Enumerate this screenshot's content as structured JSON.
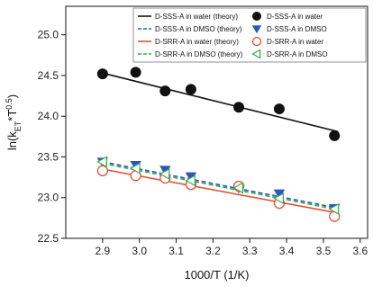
{
  "chart_data": {
    "type": "scatter",
    "xlabel": "1000/T (1/K)",
    "ylabel": "ln(k_ET*T^0.5)",
    "xlim": [
      2.8,
      3.62
    ],
    "ylim": [
      22.5,
      25.35
    ],
    "xticks": [
      "2.9",
      "3.0",
      "3.1",
      "3.2",
      "3.3",
      "3.4",
      "3.5",
      "3.6"
    ],
    "yticks": [
      "22.5",
      "23.0",
      "23.5",
      "24.0",
      "24.5",
      "25.0"
    ],
    "grid": false,
    "legend_position": "top-right",
    "series": [
      {
        "name": "D-SSS-A in water",
        "kind": "points",
        "marker": "filled-circle",
        "color": "#111111",
        "x": [
          2.9,
          2.99,
          3.07,
          3.14,
          3.27,
          3.38,
          3.53
        ],
        "y": [
          24.52,
          24.54,
          24.31,
          24.33,
          24.11,
          24.09,
          23.76
        ]
      },
      {
        "name": "D-SSS-A in water (theory)",
        "kind": "line",
        "style": "solid",
        "color": "#111111",
        "x": [
          2.9,
          3.54
        ],
        "y": [
          24.53,
          23.81
        ]
      },
      {
        "name": "D-SSS-A in DMSO",
        "kind": "points",
        "marker": "filled-triangle-down",
        "color": "#2a58b8",
        "x": [
          2.9,
          2.99,
          3.07,
          3.14,
          3.27,
          3.38,
          3.53
        ],
        "y": [
          23.44,
          23.4,
          23.34,
          23.26,
          23.12,
          23.05,
          22.87
        ]
      },
      {
        "name": "D-SSS-A in DMSO (theory)",
        "kind": "line",
        "style": "dashed",
        "color": "#2a58b8",
        "x": [
          2.9,
          3.54
        ],
        "y": [
          23.44,
          22.87
        ]
      },
      {
        "name": "D-SRR-A in water",
        "kind": "points",
        "marker": "open-circle",
        "color": "#e0533a",
        "x": [
          2.9,
          2.99,
          3.07,
          3.14,
          3.27,
          3.38,
          3.53
        ],
        "y": [
          23.33,
          23.27,
          23.24,
          23.16,
          23.14,
          22.93,
          22.77
        ]
      },
      {
        "name": "D-SRR-A in water (theory)",
        "kind": "line",
        "style": "solid",
        "color": "#e0533a",
        "x": [
          2.9,
          3.54
        ],
        "y": [
          23.35,
          22.81
        ]
      },
      {
        "name": "D-SRR-A in DMSO",
        "kind": "points",
        "marker": "open-triangle-left",
        "color": "#3aa84c",
        "x": [
          2.9,
          2.99,
          3.07,
          3.14,
          3.27,
          3.38,
          3.53
        ],
        "y": [
          23.44,
          23.36,
          23.29,
          23.21,
          23.12,
          22.99,
          22.86
        ]
      },
      {
        "name": "D-SRR-A in DMSO (theory)",
        "kind": "line",
        "style": "dashed",
        "color": "#3aa84c",
        "x": [
          2.9,
          3.54
        ],
        "y": [
          23.42,
          22.85
        ]
      }
    ],
    "legend": [
      [
        "D-SSS-A in water (theory)",
        "D-SSS-A in water"
      ],
      [
        "D-SSS-A in DMSO (theory)",
        "D-SSS-A in DMSO"
      ],
      [
        "D-SRR-A in water (theory)",
        "D-SRR-A in water"
      ],
      [
        "D-SRR-A in DMSO (theory)",
        "D-SRR-A in DMSO"
      ]
    ]
  }
}
